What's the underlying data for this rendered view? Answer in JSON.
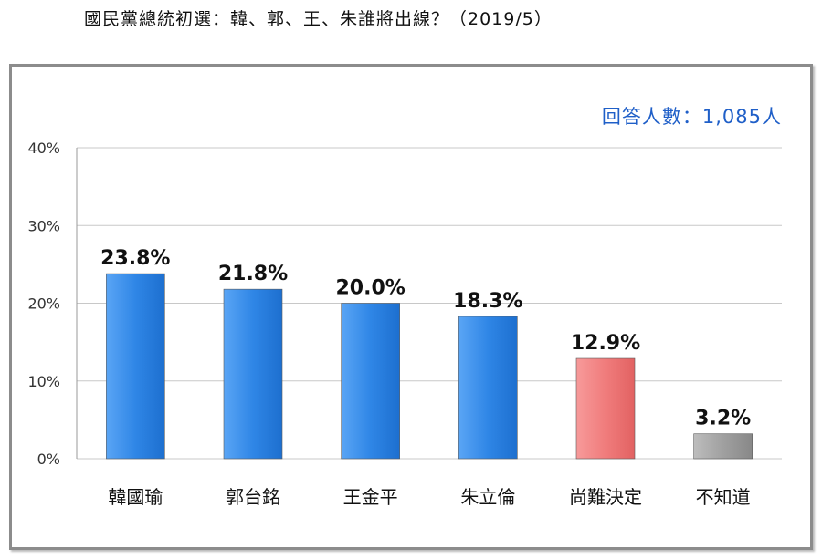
{
  "title": "國民黨總統初選：韓、郭、王、朱誰將出線？（2019/5）",
  "respondents": "回答人數：1,085人",
  "colors": {
    "blue_bar": "#2f86e6",
    "red_bar": "#f07c7c",
    "gray_bar": "#a0a0a0",
    "respondents_text": "#1f5fc8"
  },
  "chart_data": {
    "type": "bar",
    "title": "國民黨總統初選：韓、郭、王、朱誰將出線？（2019/5）",
    "categories": [
      "韓國瑜",
      "郭台銘",
      "王金平",
      "朱立倫",
      "尚難決定",
      "不知道"
    ],
    "values": [
      23.8,
      21.8,
      20.0,
      18.3,
      12.9,
      3.2
    ],
    "value_labels": [
      "23.8%",
      "21.8%",
      "20.0%",
      "18.3%",
      "12.9%",
      "3.2%"
    ],
    "bar_colors": [
      "blue_bar",
      "blue_bar",
      "blue_bar",
      "blue_bar",
      "red_bar",
      "gray_bar"
    ],
    "ylim": [
      0,
      40
    ],
    "yticks": [
      0,
      10,
      20,
      30,
      40
    ],
    "ytick_labels": [
      "0%",
      "10%",
      "20%",
      "30%",
      "40%"
    ],
    "xlabel": "",
    "ylabel": "",
    "grid": true,
    "legend": "none"
  }
}
